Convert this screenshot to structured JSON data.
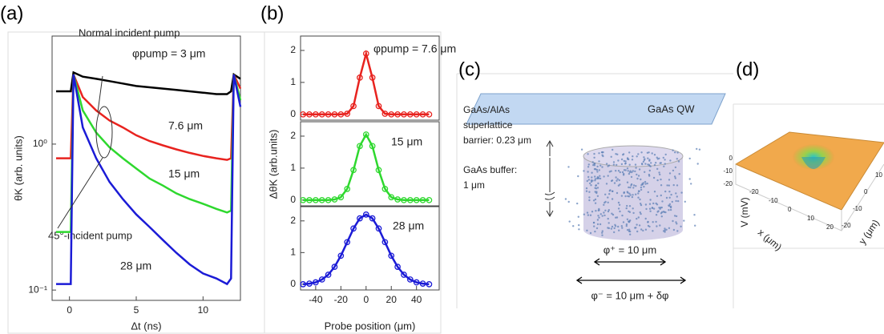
{
  "chart_data": [
    {
      "type": "line",
      "panel_label": "(a)",
      "xlabel": "Δt (ns)",
      "ylabel": "θK (arb. units)",
      "log_y": true,
      "xlim": [
        -1.3,
        12.8
      ],
      "ylim": [
        0.085,
        5.5
      ],
      "xticks": [
        0,
        5,
        10
      ],
      "yticks": [
        {
          "value": 0.1,
          "label": "10⁻¹"
        },
        {
          "value": 1,
          "label": "10⁰"
        }
      ],
      "annotations": [
        "Normal incident pump",
        "45°-incident pump"
      ],
      "x": [
        -1,
        -0.3,
        0.1,
        0.3,
        1,
        2,
        3,
        4,
        5,
        6,
        7,
        8,
        9,
        10,
        11,
        11.8,
        12.1,
        12.3,
        12.8
      ],
      "series": [
        {
          "name": "φpump = 3 μm",
          "color": "#000000",
          "values": [
            2.3,
            2.3,
            2.3,
            3.1,
            2.9,
            2.8,
            2.7,
            2.6,
            2.5,
            2.45,
            2.4,
            2.35,
            2.3,
            2.25,
            2.2,
            2.2,
            2.3,
            3.0,
            2.8
          ]
        },
        {
          "name": "7.6 μm",
          "color": "#e8231f",
          "values": [
            0.8,
            0.8,
            0.8,
            3.0,
            2.1,
            1.7,
            1.45,
            1.3,
            1.15,
            1.05,
            0.98,
            0.92,
            0.87,
            0.83,
            0.8,
            0.78,
            0.8,
            3.0,
            2.4
          ]
        },
        {
          "name": "15 μm",
          "color": "#2ed82e",
          "values": [
            0.25,
            0.25,
            0.25,
            3.0,
            1.7,
            1.2,
            0.95,
            0.8,
            0.68,
            0.58,
            0.52,
            0.46,
            0.42,
            0.39,
            0.36,
            0.34,
            0.35,
            3.0,
            2.0
          ]
        },
        {
          "name": "28 μm",
          "color": "#1b1bd6",
          "values": [
            0.11,
            0.11,
            0.11,
            3.0,
            1.3,
            0.8,
            0.55,
            0.42,
            0.33,
            0.27,
            0.22,
            0.18,
            0.15,
            0.13,
            0.12,
            0.11,
            0.12,
            3.0,
            1.8
          ]
        }
      ]
    },
    {
      "type": "line_markers",
      "panel_label": "(b)",
      "xlim": [
        -52,
        58
      ],
      "ylim": [
        -0.18,
        2.45
      ],
      "yticks": [
        0,
        1,
        2
      ],
      "x": [
        -50,
        -45,
        -40,
        -35,
        -30,
        -25,
        -20,
        -15,
        -10,
        -5,
        0,
        5,
        10,
        15,
        20,
        25,
        30,
        35,
        40,
        45,
        50
      ],
      "series": [
        {
          "name": "φpump = 7.6 μm",
          "color": "#e8231f",
          "values": [
            0,
            0,
            0,
            0,
            0,
            0,
            0,
            0.02,
            0.26,
            1.15,
            1.9,
            1.15,
            0.26,
            0.02,
            0,
            0,
            0,
            0,
            0,
            0,
            0
          ]
        }
      ]
    },
    {
      "type": "line_markers",
      "ylabel": "ΔθK (arb.units)",
      "xlim": [
        -52,
        58
      ],
      "ylim": [
        -0.18,
        2.45
      ],
      "yticks": [
        0,
        1,
        2
      ],
      "x": [
        -50,
        -45,
        -40,
        -35,
        -30,
        -25,
        -20,
        -15,
        -10,
        -5,
        0,
        5,
        10,
        15,
        20,
        25,
        30,
        35,
        40,
        45,
        50
      ],
      "series": [
        {
          "name": "15 μm",
          "color": "#2ed82e",
          "values": [
            0,
            0,
            0,
            0,
            0,
            0.02,
            0.09,
            0.35,
            0.94,
            1.69,
            2.05,
            1.69,
            0.94,
            0.35,
            0.09,
            0.02,
            0,
            0,
            0,
            0,
            0
          ]
        }
      ]
    },
    {
      "type": "line_markers",
      "xlabel": "Probe position (μm)",
      "xlim": [
        -52,
        58
      ],
      "ylim": [
        -0.18,
        2.45
      ],
      "yticks": [
        0,
        1,
        2
      ],
      "xticks": [
        -40,
        -20,
        0,
        20,
        40
      ],
      "x": [
        -50,
        -45,
        -40,
        -35,
        -30,
        -25,
        -20,
        -15,
        -10,
        -5,
        0,
        5,
        10,
        15,
        20,
        25,
        30,
        35,
        40,
        45,
        50
      ],
      "series": [
        {
          "name": "28 μm",
          "color": "#1b1bd6",
          "values": [
            0,
            0.02,
            0.06,
            0.15,
            0.3,
            0.55,
            0.9,
            1.33,
            1.76,
            2.08,
            2.2,
            2.08,
            1.76,
            1.33,
            0.9,
            0.55,
            0.3,
            0.15,
            0.06,
            0.02,
            0
          ]
        }
      ]
    }
  ],
  "diagram": {
    "panel_label": "(c)",
    "qw": "GaAs QW",
    "barrier_lines": [
      "GaAs/AlAs",
      "superlattice",
      "barrier: 0.23 μm"
    ],
    "buffer_lines": [
      "GaAs buffer:",
      "1 μm"
    ],
    "phi_plus": "φ⁺ = 10 μm",
    "phi_minus": "φ⁻ = 10 μm + δφ"
  },
  "surface": {
    "panel_label": "(d)",
    "zlabel": "V (mV)",
    "xlabel": "x (μm)",
    "ylabel": "y (μm)",
    "zticks": [
      "0",
      "-10",
      "-20"
    ],
    "xticks": [
      "-20",
      "-10",
      "0",
      "10",
      "20"
    ],
    "yticks": [
      "-20",
      "-10",
      "0",
      "10"
    ]
  }
}
